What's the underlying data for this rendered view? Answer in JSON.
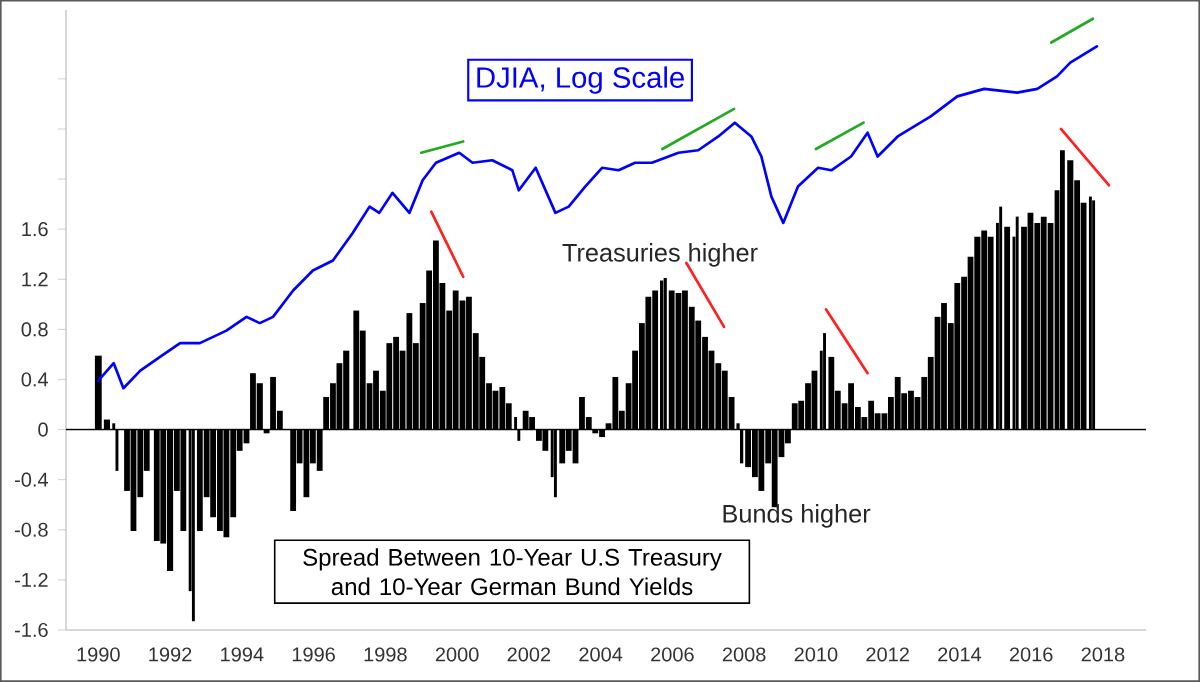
{
  "chart_data": {
    "type": "bar",
    "title": "Spread Between 10-Year U.S Treasury and 10-Year German Bund Yields",
    "annotations": [
      "Treasuries higher",
      "Bunds higher"
    ],
    "xlim": [
      1989.1,
      2019.2
    ],
    "ylim": [
      -1.6,
      3.35
    ],
    "xticks": [
      1990,
      1992,
      1994,
      1996,
      1998,
      2000,
      2002,
      2004,
      2006,
      2008,
      2010,
      2012,
      2014,
      2016,
      2018
    ],
    "yticks": [
      -1.6,
      -1.2,
      -0.8,
      -0.4,
      0,
      0.4,
      0.8,
      1.2,
      1.6,
      {
        "value": 2.0,
        "label": null
      },
      {
        "value": 2.4,
        "label": null
      },
      {
        "value": 2.8,
        "label": null
      }
    ],
    "ref_lines": [
      {
        "axis": "y",
        "value": 0,
        "color": "#000000"
      }
    ],
    "series": [
      {
        "color": "#000000",
        "x": [
          1990.0,
          1990.24,
          1990.43,
          1990.52,
          1990.8,
          1990.98,
          1991.17,
          1991.35,
          1991.63,
          1991.81,
          1992.0,
          1992.19,
          1992.37,
          1992.56,
          1992.65,
          1992.83,
          1993.02,
          1993.2,
          1993.39,
          1993.57,
          1993.76,
          1993.94,
          1994.13,
          1994.31,
          1994.5,
          1994.69,
          1994.87,
          1995.06,
          1995.24,
          1995.43,
          1995.61,
          1995.8,
          1995.98,
          1996.17,
          1996.35,
          1996.54,
          1996.72,
          1996.91,
          1997.19,
          1997.37,
          1997.56,
          1997.74,
          1997.93,
          1998.11,
          1998.3,
          1998.48,
          1998.67,
          1998.85,
          1999.04,
          1999.22,
          1999.41,
          1999.59,
          1999.78,
          1999.96,
          2000.15,
          2000.33,
          2000.52,
          2000.7,
          2000.89,
          2001.07,
          2001.26,
          2001.44,
          2001.63,
          2001.72,
          2001.91,
          2002.09,
          2002.28,
          2002.46,
          2002.65,
          2002.74,
          2002.93,
          2003.11,
          2003.3,
          2003.48,
          2003.67,
          2003.85,
          2004.04,
          2004.22,
          2004.41,
          2004.59,
          2004.78,
          2004.96,
          2005.15,
          2005.33,
          2005.52,
          2005.7,
          2005.8,
          2005.98,
          2006.17,
          2006.35,
          2006.54,
          2006.72,
          2006.91,
          2007.09,
          2007.28,
          2007.46,
          2007.65,
          2007.83,
          2007.93,
          2008.11,
          2008.3,
          2008.48,
          2008.67,
          2008.85,
          2009.04,
          2009.22,
          2009.41,
          2009.59,
          2009.78,
          2009.96,
          2010.15,
          2010.24,
          2010.43,
          2010.61,
          2010.8,
          2010.98,
          2011.17,
          2011.35,
          2011.54,
          2011.72,
          2011.91,
          2012.09,
          2012.28,
          2012.46,
          2012.65,
          2012.83,
          2013.02,
          2013.2,
          2013.39,
          2013.57,
          2013.76,
          2013.94,
          2014.13,
          2014.31,
          2014.5,
          2014.69,
          2014.87,
          2015.06,
          2015.15,
          2015.33,
          2015.52,
          2015.61,
          2015.8,
          2015.98,
          2016.17,
          2016.35,
          2016.54,
          2016.72,
          2016.87,
          2017.09,
          2017.28,
          2017.46,
          2017.65,
          2017.74
        ],
        "values": [
          0.59,
          0.08,
          0.05,
          -0.33,
          -0.49,
          -0.81,
          -0.54,
          -0.33,
          -0.89,
          -0.91,
          -1.13,
          -0.49,
          -0.81,
          -1.29,
          -1.53,
          -0.81,
          -0.54,
          -0.7,
          -0.81,
          -0.86,
          -0.7,
          -0.17,
          -0.11,
          0.45,
          0.37,
          -0.03,
          0.42,
          0.15,
          null,
          -0.65,
          -0.27,
          -0.54,
          -0.27,
          -0.33,
          0.26,
          0.37,
          0.53,
          0.63,
          0.95,
          0.79,
          0.37,
          0.47,
          0.31,
          0.69,
          0.74,
          0.63,
          0.93,
          0.69,
          1.01,
          1.27,
          1.51,
          1.17,
          0.95,
          1.11,
          1.03,
          1.06,
          0.77,
          0.58,
          0.37,
          0.31,
          0.34,
          0.21,
          0.1,
          -0.09,
          0.15,
          0.1,
          -0.09,
          -0.17,
          -0.38,
          -0.54,
          -0.27,
          -0.17,
          -0.27,
          0.26,
          0.1,
          -0.03,
          -0.06,
          0.05,
          0.42,
          0.15,
          0.37,
          0.63,
          0.85,
          1.06,
          1.11,
          1.19,
          1.21,
          1.11,
          1.09,
          1.11,
          0.98,
          0.87,
          0.74,
          0.63,
          0.53,
          0.47,
          0.26,
          0.05,
          -0.27,
          -0.3,
          -0.38,
          -0.49,
          -0.27,
          -0.62,
          -0.22,
          -0.11,
          0.21,
          0.23,
          0.37,
          0.47,
          0.63,
          0.77,
          0.58,
          0.31,
          0.21,
          0.37,
          0.18,
          0.1,
          0.23,
          0.13,
          0.13,
          0.26,
          0.42,
          0.29,
          0.31,
          0.26,
          0.42,
          0.58,
          0.9,
          1.01,
          0.85,
          1.17,
          1.22,
          1.38,
          1.54,
          1.59,
          1.54,
          1.65,
          1.78,
          1.62,
          1.54,
          1.7,
          1.62,
          1.73,
          1.65,
          1.7,
          1.65,
          1.91,
          2.23,
          2.15,
          1.99,
          1.81,
          1.86,
          1.83
        ]
      },
      {
        "type": "line",
        "name": "DJIA, Log Scale",
        "color": "#0000ff",
        "x": [
          1990.0,
          1990.43,
          1990.7,
          1991.17,
          1991.72,
          1992.28,
          1992.83,
          1993.57,
          1994.13,
          1994.5,
          1994.87,
          1995.43,
          1995.98,
          1996.54,
          1997.09,
          1997.56,
          1997.83,
          1998.2,
          1998.67,
          1999.04,
          1999.41,
          2000.06,
          2000.43,
          2000.98,
          2001.54,
          2001.72,
          2002.19,
          2002.74,
          2003.11,
          2003.57,
          2004.04,
          2004.5,
          2004.96,
          2005.43,
          2006.17,
          2006.72,
          2007.28,
          2007.74,
          2008.2,
          2008.48,
          2008.76,
          2009.09,
          2009.5,
          2010.06,
          2010.43,
          2010.98,
          2011.44,
          2011.72,
          2012.28,
          2013.2,
          2013.94,
          2014.69,
          2015.61,
          2016.17,
          2016.72,
          2017.09,
          2017.83
        ],
        "values": [
          0.39,
          0.53,
          0.33,
          0.47,
          0.58,
          0.69,
          0.69,
          0.79,
          0.9,
          0.85,
          0.9,
          1.11,
          1.27,
          1.35,
          1.57,
          1.78,
          1.73,
          1.89,
          1.73,
          1.99,
          2.13,
          2.21,
          2.13,
          2.15,
          2.07,
          1.91,
          2.09,
          1.73,
          1.78,
          1.94,
          2.09,
          2.07,
          2.13,
          2.13,
          2.21,
          2.23,
          2.34,
          2.45,
          2.34,
          2.18,
          1.86,
          1.65,
          1.94,
          2.09,
          2.07,
          2.18,
          2.37,
          2.18,
          2.34,
          2.5,
          2.66,
          2.72,
          2.69,
          2.72,
          2.82,
          2.93,
          3.06
        ]
      },
      {
        "type": "line",
        "color": "#22aa22",
        "x": [
          1999.0,
          2000.17
        ],
        "values": [
          2.21,
          2.3
        ]
      },
      {
        "type": "line",
        "color": "#22aa22",
        "x": [
          2005.72,
          2007.72
        ],
        "values": [
          2.24,
          2.56
        ]
      },
      {
        "type": "line",
        "color": "#22aa22",
        "x": [
          2010.0,
          2011.33
        ],
        "values": [
          2.24,
          2.45
        ]
      },
      {
        "type": "line",
        "color": "#22aa22",
        "x": [
          2016.56,
          2017.72
        ],
        "values": [
          3.09,
          3.28
        ]
      },
      {
        "type": "line",
        "color": "#ff2020",
        "x": [
          1999.28,
          2000.17
        ],
        "values": [
          1.74,
          1.22
        ]
      },
      {
        "type": "line",
        "color": "#ff2020",
        "x": [
          2006.39,
          2007.44
        ],
        "values": [
          1.33,
          0.82
        ]
      },
      {
        "type": "line",
        "color": "#ff2020",
        "x": [
          2010.28,
          2011.44
        ],
        "values": [
          0.96,
          0.45
        ]
      },
      {
        "type": "line",
        "color": "#ff2020",
        "x": [
          2016.83,
          2018.17
        ],
        "values": [
          2.4,
          1.95
        ]
      }
    ]
  }
}
